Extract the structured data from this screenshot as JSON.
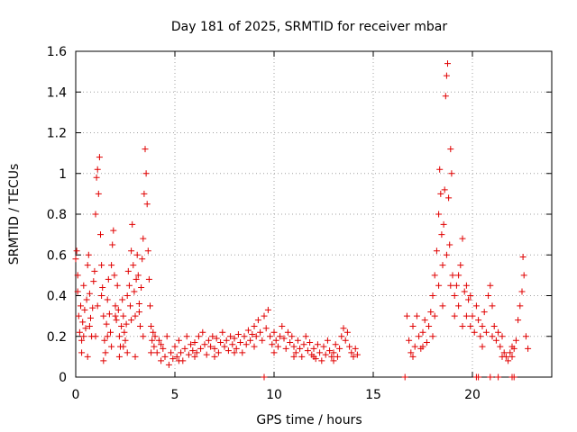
{
  "chart_data": {
    "type": "scatter",
    "title": "Day 181 of 2025, SRMTID for receiver mbar",
    "xlabel": "GPS time / hours",
    "ylabel": "SRMTID / TECUs",
    "xlim": [
      0,
      24
    ],
    "ylim": [
      0,
      1.6
    ],
    "xticks": [
      0,
      5,
      10,
      15,
      20
    ],
    "xtick_labels": [
      "0",
      "5",
      "10",
      "15",
      "20"
    ],
    "yticks": [
      0,
      0.2,
      0.4,
      0.6,
      0.8,
      1,
      1.2,
      1.4,
      1.6
    ],
    "ytick_labels": [
      "0",
      "0.2",
      "0.4",
      "0.6",
      "0.8",
      "1",
      "1.2",
      "1.4",
      "1.6"
    ],
    "grid": true,
    "marker": "+",
    "marker_color": "#e00000",
    "series": [
      {
        "name": "SRMTID",
        "points": [
          [
            0.0,
            0.58
          ],
          [
            0.05,
            0.62
          ],
          [
            0.1,
            0.42
          ],
          [
            0.15,
            0.3
          ],
          [
            0.2,
            0.22
          ],
          [
            0.25,
            0.35
          ],
          [
            0.3,
            0.18
          ],
          [
            0.35,
            0.27
          ],
          [
            0.4,
            0.45
          ],
          [
            0.45,
            0.33
          ],
          [
            0.5,
            0.24
          ],
          [
            0.55,
            0.38
          ],
          [
            0.6,
            0.55
          ],
          [
            0.65,
            0.6
          ],
          [
            0.7,
            0.41
          ],
          [
            0.75,
            0.29
          ],
          [
            0.8,
            0.2
          ],
          [
            0.85,
            0.34
          ],
          [
            0.9,
            0.47
          ],
          [
            0.95,
            0.52
          ],
          [
            1.0,
            0.8
          ],
          [
            1.05,
            0.98
          ],
          [
            1.1,
            1.02
          ],
          [
            1.15,
            0.9
          ],
          [
            1.2,
            1.08
          ],
          [
            1.25,
            0.7
          ],
          [
            1.3,
            0.55
          ],
          [
            1.35,
            0.44
          ],
          [
            1.4,
            0.3
          ],
          [
            1.45,
            0.18
          ],
          [
            1.5,
            0.12
          ],
          [
            1.55,
            0.26
          ],
          [
            1.6,
            0.38
          ],
          [
            1.65,
            0.48
          ],
          [
            1.7,
            0.31
          ],
          [
            1.75,
            0.22
          ],
          [
            1.8,
            0.55
          ],
          [
            1.85,
            0.65
          ],
          [
            1.9,
            0.72
          ],
          [
            1.95,
            0.5
          ],
          [
            2.0,
            0.35
          ],
          [
            2.05,
            0.28
          ],
          [
            2.1,
            0.45
          ],
          [
            2.15,
            0.33
          ],
          [
            2.2,
            0.2
          ],
          [
            2.25,
            0.15
          ],
          [
            2.3,
            0.25
          ],
          [
            2.35,
            0.38
          ],
          [
            2.4,
            0.3
          ],
          [
            2.45,
            0.22
          ],
          [
            2.5,
            0.18
          ],
          [
            2.55,
            0.26
          ],
          [
            2.6,
            0.4
          ],
          [
            2.65,
            0.52
          ],
          [
            2.7,
            0.45
          ],
          [
            2.75,
            0.35
          ],
          [
            2.8,
            0.62
          ],
          [
            2.85,
            0.75
          ],
          [
            2.9,
            0.55
          ],
          [
            2.95,
            0.42
          ],
          [
            3.0,
            0.3
          ],
          [
            3.05,
            0.48
          ],
          [
            3.1,
            0.6
          ],
          [
            3.15,
            0.5
          ],
          [
            3.2,
            0.36
          ],
          [
            3.25,
            0.25
          ],
          [
            3.3,
            0.44
          ],
          [
            3.35,
            0.58
          ],
          [
            3.4,
            0.68
          ],
          [
            3.45,
            0.9
          ],
          [
            3.5,
            1.12
          ],
          [
            3.55,
            1.0
          ],
          [
            3.6,
            0.85
          ],
          [
            3.65,
            0.62
          ],
          [
            3.7,
            0.48
          ],
          [
            3.75,
            0.35
          ],
          [
            3.8,
            0.25
          ],
          [
            3.85,
            0.18
          ],
          [
            3.9,
            0.22
          ],
          [
            3.95,
            0.15
          ],
          [
            0.3,
            0.12
          ],
          [
            0.6,
            0.1
          ],
          [
            1.0,
            0.2
          ],
          [
            1.4,
            0.08
          ],
          [
            1.8,
            0.15
          ],
          [
            2.2,
            0.1
          ],
          [
            2.6,
            0.12
          ],
          [
            3.0,
            0.1
          ],
          [
            3.4,
            0.2
          ],
          [
            3.8,
            0.12
          ],
          [
            0.1,
            0.5
          ],
          [
            0.4,
            0.2
          ],
          [
            0.7,
            0.25
          ],
          [
            1.1,
            0.35
          ],
          [
            1.3,
            0.4
          ],
          [
            1.6,
            0.2
          ],
          [
            2.0,
            0.3
          ],
          [
            2.4,
            0.15
          ],
          [
            2.8,
            0.28
          ],
          [
            3.2,
            0.32
          ],
          [
            4.0,
            0.2
          ],
          [
            4.1,
            0.12
          ],
          [
            4.2,
            0.18
          ],
          [
            4.3,
            0.08
          ],
          [
            4.4,
            0.14
          ],
          [
            4.5,
            0.1
          ],
          [
            4.6,
            0.2
          ],
          [
            4.7,
            0.06
          ],
          [
            4.8,
            0.12
          ],
          [
            4.9,
            0.09
          ],
          [
            5.0,
            0.15
          ],
          [
            5.1,
            0.1
          ],
          [
            5.2,
            0.18
          ],
          [
            5.3,
            0.12
          ],
          [
            5.4,
            0.08
          ],
          [
            5.5,
            0.14
          ],
          [
            5.6,
            0.2
          ],
          [
            5.7,
            0.11
          ],
          [
            5.8,
            0.16
          ],
          [
            5.9,
            0.13
          ],
          [
            6.0,
            0.17
          ],
          [
            6.1,
            0.12
          ],
          [
            6.2,
            0.2
          ],
          [
            6.3,
            0.14
          ],
          [
            6.4,
            0.22
          ],
          [
            6.5,
            0.16
          ],
          [
            6.6,
            0.11
          ],
          [
            6.7,
            0.18
          ],
          [
            6.8,
            0.15
          ],
          [
            6.9,
            0.2
          ],
          [
            7.0,
            0.14
          ],
          [
            7.1,
            0.19
          ],
          [
            7.2,
            0.12
          ],
          [
            7.3,
            0.17
          ],
          [
            7.4,
            0.22
          ],
          [
            7.5,
            0.15
          ],
          [
            7.6,
            0.18
          ],
          [
            7.7,
            0.13
          ],
          [
            7.8,
            0.2
          ],
          [
            7.9,
            0.16
          ],
          [
            8.0,
            0.19
          ],
          [
            8.1,
            0.14
          ],
          [
            8.2,
            0.21
          ],
          [
            8.3,
            0.17
          ],
          [
            8.4,
            0.12
          ],
          [
            8.5,
            0.2
          ],
          [
            8.6,
            0.16
          ],
          [
            8.7,
            0.23
          ],
          [
            8.8,
            0.18
          ],
          [
            8.9,
            0.21
          ],
          [
            9.0,
            0.25
          ],
          [
            9.1,
            0.2
          ],
          [
            9.2,
            0.28
          ],
          [
            9.3,
            0.22
          ],
          [
            9.4,
            0.18
          ],
          [
            9.5,
            0.3
          ],
          [
            9.6,
            0.24
          ],
          [
            9.7,
            0.33
          ],
          [
            9.8,
            0.2
          ],
          [
            9.9,
            0.16
          ],
          [
            10.0,
            0.22
          ],
          [
            10.1,
            0.18
          ],
          [
            10.2,
            0.15
          ],
          [
            10.3,
            0.2
          ],
          [
            10.4,
            0.25
          ],
          [
            10.5,
            0.19
          ],
          [
            10.6,
            0.14
          ],
          [
            10.7,
            0.22
          ],
          [
            10.8,
            0.17
          ],
          [
            10.9,
            0.2
          ],
          [
            11.0,
            0.15
          ],
          [
            11.1,
            0.12
          ],
          [
            11.2,
            0.18
          ],
          [
            11.3,
            0.14
          ],
          [
            11.4,
            0.1
          ],
          [
            11.5,
            0.16
          ],
          [
            11.6,
            0.2
          ],
          [
            11.7,
            0.13
          ],
          [
            11.8,
            0.17
          ],
          [
            11.9,
            0.11
          ],
          [
            12.0,
            0.14
          ],
          [
            12.1,
            0.09
          ],
          [
            12.2,
            0.16
          ],
          [
            12.3,
            0.12
          ],
          [
            12.4,
            0.08
          ],
          [
            12.5,
            0.15
          ],
          [
            12.6,
            0.11
          ],
          [
            12.7,
            0.18
          ],
          [
            12.8,
            0.13
          ],
          [
            12.9,
            0.1
          ],
          [
            13.0,
            0.12
          ],
          [
            13.1,
            0.16
          ],
          [
            13.2,
            0.1
          ],
          [
            13.3,
            0.14
          ],
          [
            13.4,
            0.2
          ],
          [
            13.5,
            0.24
          ],
          [
            13.6,
            0.18
          ],
          [
            13.7,
            0.22
          ],
          [
            13.8,
            0.15
          ],
          [
            13.9,
            0.12
          ],
          [
            14.0,
            0.1
          ],
          [
            14.1,
            0.14
          ],
          [
            14.2,
            0.11
          ],
          [
            4.3,
            0.16
          ],
          [
            5.2,
            0.08
          ],
          [
            6.0,
            0.1
          ],
          [
            7.0,
            0.1
          ],
          [
            8.0,
            0.12
          ],
          [
            9.0,
            0.15
          ],
          [
            10.0,
            0.12
          ],
          [
            11.0,
            0.1
          ],
          [
            12.0,
            0.1
          ],
          [
            13.0,
            0.08
          ],
          [
            9.5,
            0.0
          ],
          [
            16.6,
            0.0
          ],
          [
            20.2,
            0.0
          ],
          [
            20.3,
            0.0
          ],
          [
            20.9,
            0.0
          ],
          [
            21.3,
            0.0
          ],
          [
            22.0,
            0.0
          ],
          [
            22.1,
            0.0
          ],
          [
            16.7,
            0.3
          ],
          [
            16.8,
            0.18
          ],
          [
            16.9,
            0.12
          ],
          [
            17.0,
            0.25
          ],
          [
            17.1,
            0.15
          ],
          [
            17.2,
            0.3
          ],
          [
            17.3,
            0.2
          ],
          [
            17.4,
            0.14
          ],
          [
            17.5,
            0.22
          ],
          [
            17.6,
            0.28
          ],
          [
            17.7,
            0.17
          ],
          [
            17.8,
            0.25
          ],
          [
            17.9,
            0.32
          ],
          [
            18.0,
            0.4
          ],
          [
            18.1,
            0.5
          ],
          [
            18.2,
            0.62
          ],
          [
            18.3,
            0.8
          ],
          [
            18.35,
            1.02
          ],
          [
            18.4,
            0.9
          ],
          [
            18.45,
            0.7
          ],
          [
            18.5,
            0.55
          ],
          [
            18.55,
            0.75
          ],
          [
            18.6,
            0.92
          ],
          [
            18.65,
            1.38
          ],
          [
            18.7,
            1.48
          ],
          [
            18.75,
            1.54
          ],
          [
            18.8,
            0.88
          ],
          [
            18.85,
            0.65
          ],
          [
            18.9,
            1.12
          ],
          [
            18.95,
            1.0
          ],
          [
            19.0,
            0.5
          ],
          [
            19.1,
            0.4
          ],
          [
            19.2,
            0.45
          ],
          [
            19.3,
            0.35
          ],
          [
            19.4,
            0.55
          ],
          [
            19.5,
            0.68
          ],
          [
            19.6,
            0.42
          ],
          [
            19.7,
            0.3
          ],
          [
            19.8,
            0.38
          ],
          [
            19.9,
            0.25
          ],
          [
            20.0,
            0.3
          ],
          [
            20.1,
            0.22
          ],
          [
            20.2,
            0.35
          ],
          [
            20.3,
            0.28
          ],
          [
            20.4,
            0.2
          ],
          [
            20.5,
            0.25
          ],
          [
            20.6,
            0.32
          ],
          [
            20.7,
            0.22
          ],
          [
            20.8,
            0.4
          ],
          [
            20.9,
            0.45
          ],
          [
            21.0,
            0.35
          ],
          [
            21.1,
            0.25
          ],
          [
            21.2,
            0.18
          ],
          [
            21.3,
            0.22
          ],
          [
            21.4,
            0.15
          ],
          [
            21.5,
            0.2
          ],
          [
            21.6,
            0.12
          ],
          [
            21.7,
            0.1
          ],
          [
            21.8,
            0.08
          ],
          [
            21.9,
            0.12
          ],
          [
            22.0,
            0.1
          ],
          [
            22.1,
            0.14
          ],
          [
            22.2,
            0.18
          ],
          [
            22.3,
            0.28
          ],
          [
            22.4,
            0.35
          ],
          [
            22.5,
            0.42
          ],
          [
            22.55,
            0.59
          ],
          [
            22.6,
            0.5
          ],
          [
            22.7,
            0.2
          ],
          [
            22.8,
            0.14
          ],
          [
            18.1,
            0.3
          ],
          [
            18.3,
            0.45
          ],
          [
            18.5,
            0.35
          ],
          [
            18.7,
            0.6
          ],
          [
            18.9,
            0.45
          ],
          [
            19.1,
            0.3
          ],
          [
            19.3,
            0.5
          ],
          [
            19.5,
            0.25
          ],
          [
            19.7,
            0.45
          ],
          [
            19.9,
            0.4
          ],
          [
            17.0,
            0.1
          ],
          [
            17.5,
            0.15
          ],
          [
            18.0,
            0.2
          ],
          [
            20.5,
            0.15
          ],
          [
            21.0,
            0.2
          ],
          [
            21.5,
            0.1
          ],
          [
            22.0,
            0.15
          ]
        ]
      }
    ]
  }
}
